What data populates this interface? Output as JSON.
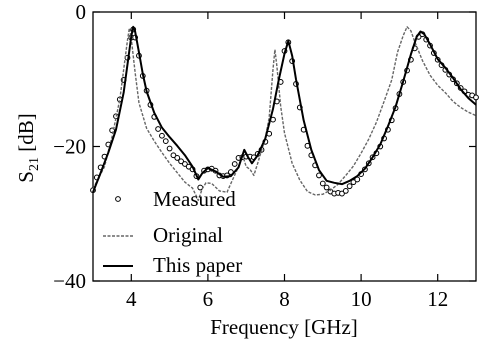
{
  "chart_data": {
    "type": "line",
    "xlabel": "Frequency  [GHz]",
    "ylabel_main": "S",
    "ylabel_sub": "21",
    "ylabel_unit": " [dB]",
    "xlim": [
      3,
      13
    ],
    "ylim": [
      -40,
      0
    ],
    "xticks": [
      4,
      6,
      8,
      10,
      12
    ],
    "yticks": [
      0,
      -20,
      -40
    ],
    "xtick_labels": [
      "4",
      "6",
      "8",
      "10",
      "12"
    ],
    "ytick_labels": [
      "0",
      "−20",
      "−40"
    ],
    "grid": false,
    "legend_position": "bottom-left",
    "series": [
      {
        "name": "Measured",
        "style": "circles",
        "points": [
          [
            3.0,
            -26.5
          ],
          [
            3.1,
            -24.6
          ],
          [
            3.2,
            -23.1
          ],
          [
            3.3,
            -21.5
          ],
          [
            3.4,
            -19.7
          ],
          [
            3.5,
            -17.6
          ],
          [
            3.6,
            -15.5
          ],
          [
            3.7,
            -13.0
          ],
          [
            3.8,
            -10.1
          ],
          [
            3.9,
            -6.8
          ],
          [
            4.0,
            -3.8
          ],
          [
            4.05,
            -2.6
          ],
          [
            4.1,
            -3.8
          ],
          [
            4.2,
            -6.5
          ],
          [
            4.3,
            -9.5
          ],
          [
            4.4,
            -11.7
          ],
          [
            4.5,
            -13.8
          ],
          [
            4.6,
            -15.6
          ],
          [
            4.7,
            -17.4
          ],
          [
            4.8,
            -18.4
          ],
          [
            4.9,
            -19.2
          ],
          [
            5.0,
            -20.3
          ],
          [
            5.1,
            -21.3
          ],
          [
            5.2,
            -21.7
          ],
          [
            5.3,
            -22.2
          ],
          [
            5.4,
            -22.6
          ],
          [
            5.5,
            -23.0
          ],
          [
            5.6,
            -23.4
          ],
          [
            5.7,
            -24.4
          ],
          [
            5.8,
            -26.1
          ],
          [
            5.9,
            -23.6
          ],
          [
            6.0,
            -23.4
          ],
          [
            6.1,
            -23.3
          ],
          [
            6.2,
            -23.6
          ],
          [
            6.3,
            -24.3
          ],
          [
            6.4,
            -24.4
          ],
          [
            6.5,
            -24.3
          ],
          [
            6.6,
            -23.8
          ],
          [
            6.7,
            -22.6
          ],
          [
            6.8,
            -21.7
          ],
          [
            6.9,
            -21.6
          ],
          [
            7.0,
            -21.5
          ],
          [
            7.1,
            -21.5
          ],
          [
            7.2,
            -21.6
          ],
          [
            7.3,
            -21.1
          ],
          [
            7.4,
            -20.5
          ],
          [
            7.5,
            -19.3
          ],
          [
            7.6,
            -18.1
          ],
          [
            7.7,
            -16.0
          ],
          [
            7.8,
            -13.3
          ],
          [
            7.9,
            -10.4
          ],
          [
            8.0,
            -5.8
          ],
          [
            8.1,
            -4.5
          ],
          [
            8.2,
            -7.3
          ],
          [
            8.3,
            -10.7
          ],
          [
            8.4,
            -14.2
          ],
          [
            8.5,
            -17.5
          ],
          [
            8.6,
            -19.9
          ],
          [
            8.7,
            -21.3
          ],
          [
            8.8,
            -22.8
          ],
          [
            8.9,
            -24.3
          ],
          [
            9.0,
            -25.5
          ],
          [
            9.1,
            -26.1
          ],
          [
            9.2,
            -26.7
          ],
          [
            9.3,
            -27.0
          ],
          [
            9.4,
            -26.9
          ],
          [
            9.5,
            -27.0
          ],
          [
            9.6,
            -26.6
          ],
          [
            9.7,
            -25.9
          ],
          [
            9.8,
            -25.3
          ],
          [
            9.9,
            -24.9
          ],
          [
            10.0,
            -24.1
          ],
          [
            10.1,
            -23.4
          ],
          [
            10.2,
            -22.5
          ],
          [
            10.3,
            -21.6
          ],
          [
            10.4,
            -21.0
          ],
          [
            10.5,
            -20.0
          ],
          [
            10.6,
            -18.8
          ],
          [
            10.7,
            -17.5
          ],
          [
            10.8,
            -16.1
          ],
          [
            10.9,
            -14.3
          ],
          [
            11.0,
            -12.2
          ],
          [
            11.1,
            -10.4
          ],
          [
            11.2,
            -8.7
          ],
          [
            11.3,
            -7.1
          ],
          [
            11.4,
            -5.4
          ],
          [
            11.5,
            -3.7
          ],
          [
            11.6,
            -3.3
          ],
          [
            11.7,
            -4.1
          ],
          [
            11.8,
            -5.0
          ],
          [
            11.9,
            -6.1
          ],
          [
            12.0,
            -7.1
          ],
          [
            12.1,
            -7.9
          ],
          [
            12.2,
            -8.6
          ],
          [
            12.3,
            -9.3
          ],
          [
            12.4,
            -10.0
          ],
          [
            12.5,
            -10.6
          ],
          [
            12.6,
            -11.3
          ],
          [
            12.7,
            -11.8
          ],
          [
            12.8,
            -12.3
          ],
          [
            12.9,
            -12.4
          ],
          [
            13.0,
            -12.7
          ]
        ]
      },
      {
        "name": "Original",
        "style": "dashed",
        "points": [
          [
            3.0,
            -26.3
          ],
          [
            3.3,
            -23.0
          ],
          [
            3.5,
            -18.5
          ],
          [
            3.7,
            -13.0
          ],
          [
            3.8,
            -8.6
          ],
          [
            3.9,
            -4.2
          ],
          [
            3.95,
            -2.4
          ],
          [
            4.0,
            -4.0
          ],
          [
            4.1,
            -9.0
          ],
          [
            4.2,
            -13.5
          ],
          [
            4.4,
            -17.3
          ],
          [
            4.6,
            -19.2
          ],
          [
            4.8,
            -20.9
          ],
          [
            5.0,
            -22.5
          ],
          [
            5.2,
            -23.9
          ],
          [
            5.4,
            -25.3
          ],
          [
            5.6,
            -26.2
          ],
          [
            5.75,
            -28.0
          ],
          [
            5.85,
            -26.3
          ],
          [
            5.95,
            -25.4
          ],
          [
            6.1,
            -25.5
          ],
          [
            6.3,
            -26.6
          ],
          [
            6.5,
            -26.8
          ],
          [
            6.6,
            -25.5
          ],
          [
            6.8,
            -23.0
          ],
          [
            6.9,
            -21.2
          ],
          [
            7.0,
            -23.0
          ],
          [
            7.1,
            -23.4
          ],
          [
            7.2,
            -24.3
          ],
          [
            7.3,
            -22.5
          ],
          [
            7.4,
            -20.6
          ],
          [
            7.5,
            -18.7
          ],
          [
            7.6,
            -15.7
          ],
          [
            7.7,
            -8.5
          ],
          [
            7.75,
            -5.6
          ],
          [
            7.8,
            -8.0
          ],
          [
            7.9,
            -14.0
          ],
          [
            8.0,
            -18.0
          ],
          [
            8.2,
            -22.5
          ],
          [
            8.4,
            -25.0
          ],
          [
            8.6,
            -26.7
          ],
          [
            8.8,
            -27.2
          ],
          [
            9.0,
            -27.1
          ],
          [
            9.2,
            -26.5
          ],
          [
            9.4,
            -25.6
          ],
          [
            9.6,
            -24.3
          ],
          [
            9.8,
            -22.9
          ],
          [
            10.0,
            -21.0
          ],
          [
            10.2,
            -18.9
          ],
          [
            10.4,
            -16.4
          ],
          [
            10.6,
            -13.3
          ],
          [
            10.8,
            -10.1
          ],
          [
            10.95,
            -6.0
          ],
          [
            11.1,
            -3.5
          ],
          [
            11.2,
            -2.2
          ],
          [
            11.3,
            -2.8
          ],
          [
            11.4,
            -4.4
          ],
          [
            11.6,
            -7.2
          ],
          [
            11.8,
            -9.4
          ],
          [
            12.0,
            -10.9
          ],
          [
            12.2,
            -12.0
          ],
          [
            12.4,
            -13.3
          ],
          [
            12.6,
            -14.2
          ],
          [
            12.8,
            -14.9
          ],
          [
            13.0,
            -15.4
          ]
        ]
      },
      {
        "name": "This  paper",
        "style": "solid",
        "points": [
          [
            3.0,
            -26.8
          ],
          [
            3.2,
            -23.9
          ],
          [
            3.4,
            -20.9
          ],
          [
            3.6,
            -17.5
          ],
          [
            3.8,
            -12.0
          ],
          [
            3.9,
            -7.8
          ],
          [
            4.0,
            -3.6
          ],
          [
            4.05,
            -2.2
          ],
          [
            4.1,
            -2.9
          ],
          [
            4.2,
            -6.0
          ],
          [
            4.3,
            -9.2
          ],
          [
            4.4,
            -11.8
          ],
          [
            4.6,
            -15.0
          ],
          [
            4.8,
            -17.2
          ],
          [
            5.0,
            -18.6
          ],
          [
            5.2,
            -19.9
          ],
          [
            5.4,
            -21.3
          ],
          [
            5.6,
            -23.0
          ],
          [
            5.75,
            -24.9
          ],
          [
            5.85,
            -24.0
          ],
          [
            6.0,
            -23.2
          ],
          [
            6.2,
            -23.7
          ],
          [
            6.4,
            -24.5
          ],
          [
            6.6,
            -24.4
          ],
          [
            6.8,
            -23.1
          ],
          [
            6.95,
            -20.5
          ],
          [
            7.05,
            -21.6
          ],
          [
            7.15,
            -22.5
          ],
          [
            7.3,
            -21.3
          ],
          [
            7.5,
            -18.8
          ],
          [
            7.7,
            -14.4
          ],
          [
            7.85,
            -10.1
          ],
          [
            8.0,
            -6.2
          ],
          [
            8.1,
            -4.3
          ],
          [
            8.2,
            -6.5
          ],
          [
            8.3,
            -10.0
          ],
          [
            8.5,
            -16.1
          ],
          [
            8.7,
            -20.5
          ],
          [
            8.9,
            -23.5
          ],
          [
            9.1,
            -25.1
          ],
          [
            9.3,
            -25.4
          ],
          [
            9.5,
            -25.6
          ],
          [
            9.7,
            -25.1
          ],
          [
            9.9,
            -24.4
          ],
          [
            10.1,
            -23.3
          ],
          [
            10.3,
            -21.6
          ],
          [
            10.5,
            -19.7
          ],
          [
            10.7,
            -17.0
          ],
          [
            10.9,
            -14.1
          ],
          [
            11.1,
            -10.3
          ],
          [
            11.3,
            -6.3
          ],
          [
            11.45,
            -3.7
          ],
          [
            11.55,
            -2.9
          ],
          [
            11.65,
            -3.3
          ],
          [
            11.8,
            -4.8
          ],
          [
            12.0,
            -7.0
          ],
          [
            12.2,
            -8.3
          ],
          [
            12.4,
            -9.8
          ],
          [
            12.6,
            -11.5
          ],
          [
            12.8,
            -12.8
          ],
          [
            13.0,
            -13.8
          ]
        ]
      }
    ]
  }
}
